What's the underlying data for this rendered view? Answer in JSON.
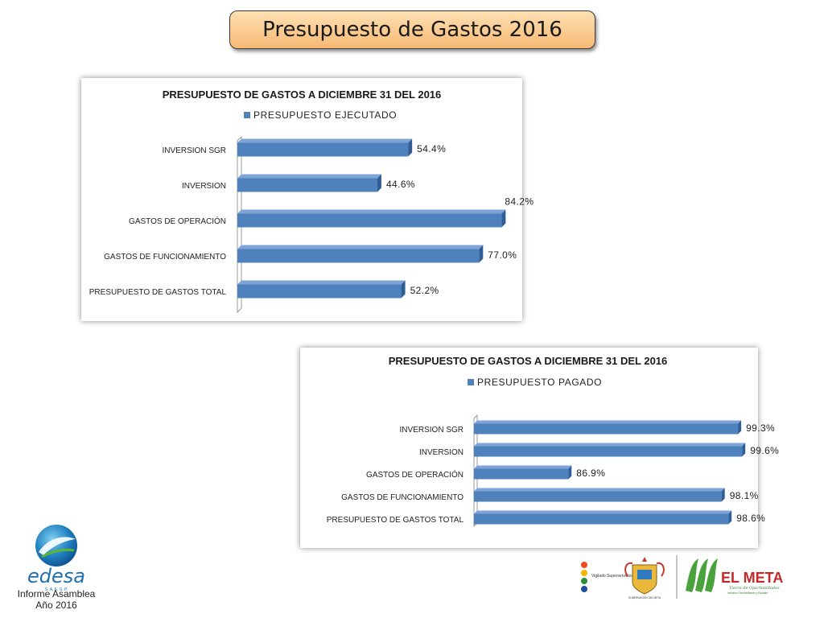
{
  "header": {
    "title": "Presupuesto de Gastos  2016"
  },
  "chart_data": [
    {
      "type": "bar",
      "orientation": "horizontal",
      "title": "PRESUPUESTO DE GASTOS A DICIEMBRE 31  DEL 2016",
      "legend": "top",
      "categories": [
        "INVERSION SGR",
        "INVERSION",
        "GASTOS DE OPERACIÓN",
        "GASTOS DE FUNCIONAMIENTO",
        "PRESUPUESTO DE GASTOS TOTAL"
      ],
      "series": [
        {
          "name": "PRESUPUESTO EJECUTADO",
          "values": [
            54.4,
            44.6,
            84.2,
            77.0,
            52.2
          ],
          "labels": [
            "54.4%",
            "44.6%",
            "84.2%",
            "77.0%",
            "52.2%"
          ],
          "color": "#4f81bd"
        }
      ],
      "xlim": [
        0,
        100
      ],
      "grid": false
    },
    {
      "type": "bar",
      "orientation": "horizontal",
      "title": "PRESUPUESTO DE GASTOS A DICIEMBRE 31 DEL 2016",
      "legend": "top",
      "categories": [
        "INVERSION SGR",
        "INVERSION",
        "GASTOS DE OPERACIÓN",
        "GASTOS DE FUNCIONAMIENTO",
        "PRESUPUESTO DE GASTOS TOTAL"
      ],
      "series": [
        {
          "name": "PRESUPUESTO PAGADO",
          "values": [
            99.3,
            99.6,
            86.9,
            98.1,
            98.6
          ],
          "labels": [
            "99.3%",
            "99.6%",
            "86.9%",
            "98.1%",
            "98.6%"
          ],
          "color": "#4f81bd"
        }
      ],
      "xlim": [
        80,
        100
      ],
      "grid": false
    }
  ],
  "logo": {
    "brand": "edesa",
    "tagline": "S. A.  E. S. P.",
    "caption_line1": "Informe Asamblea",
    "caption_line2": "Año 2016"
  },
  "footer_logos": {
    "vigilado": "Vigilado Superservicios",
    "gobernacion": "GOBERNACIÓN DEL META",
    "meta": "EL META",
    "meta_slogan": "Tierra de Oportunidades",
    "meta_sub": "Inclusión, Reconciliación y Equidad"
  }
}
